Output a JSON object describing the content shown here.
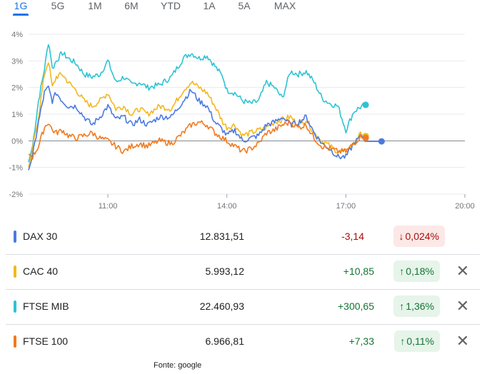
{
  "tabs": [
    "1G",
    "5G",
    "1M",
    "6M",
    "YTD",
    "1A",
    "5A",
    "MAX"
  ],
  "active_tab": "1G",
  "colors": {
    "DAX 30": "#4a7ae0",
    "CAC 40": "#f3b81e",
    "FTSE MIB": "#2ec3d3",
    "FTSE 100": "#f07a1f",
    "up": "#137333",
    "down": "#a50e0e"
  },
  "chart_data": {
    "type": "line",
    "x_unit": "time of day (hours)",
    "xlim": [
      9,
      20
    ],
    "ylim": [
      -2,
      4
    ],
    "xticks": [
      "11:00",
      "14:00",
      "17:00",
      "20:00"
    ],
    "yticks": [
      "4%",
      "3%",
      "2%",
      "1%",
      "0%",
      "-1%",
      "-2%"
    ],
    "baseline": 0,
    "grid": "horizontal",
    "series": [
      {
        "name": "FTSE MIB",
        "x": [
          9.0,
          9.1,
          9.25,
          9.4,
          9.5,
          9.55,
          9.6,
          9.7,
          9.85,
          10.0,
          10.2,
          10.4,
          10.6,
          10.8,
          11.0,
          11.2,
          11.4,
          11.6,
          11.8,
          12.0,
          12.3,
          12.6,
          12.9,
          13.0,
          13.1,
          13.3,
          13.5,
          13.7,
          13.9,
          14.0,
          14.2,
          14.4,
          14.6,
          14.8,
          15.0,
          15.2,
          15.4,
          15.6,
          15.8,
          16.0,
          16.2,
          16.4,
          16.6,
          16.8,
          17.0,
          17.2,
          17.4,
          17.5
        ],
        "values": [
          -0.8,
          -0.2,
          1.5,
          2.7,
          3.7,
          3.3,
          2.7,
          3.0,
          3.3,
          3.1,
          2.9,
          2.5,
          2.4,
          2.5,
          3.0,
          2.2,
          2.4,
          2.1,
          2.2,
          2.0,
          2.1,
          2.4,
          3.1,
          3.2,
          3.3,
          3.1,
          3.2,
          2.8,
          2.4,
          1.9,
          1.8,
          1.5,
          1.4,
          1.5,
          2.2,
          2.0,
          1.6,
          2.6,
          2.5,
          2.6,
          2.2,
          1.6,
          1.4,
          1.3,
          0.4,
          1.1,
          1.3,
          1.35
        ]
      },
      {
        "name": "CAC 40",
        "x": [
          9.0,
          9.1,
          9.25,
          9.4,
          9.5,
          9.6,
          9.7,
          9.85,
          10.0,
          10.2,
          10.4,
          10.6,
          10.8,
          11.0,
          11.2,
          11.4,
          11.6,
          11.8,
          12.0,
          12.3,
          12.6,
          12.9,
          13.1,
          13.3,
          13.5,
          13.7,
          13.9,
          14.0,
          14.2,
          14.4,
          14.6,
          14.8,
          15.0,
          15.2,
          15.4,
          15.6,
          15.8,
          16.0,
          16.2,
          16.4,
          16.6,
          16.8,
          17.0,
          17.2,
          17.4,
          17.5
        ],
        "values": [
          -1.0,
          -0.3,
          0.9,
          2.5,
          3.0,
          2.0,
          2.4,
          2.5,
          2.2,
          1.9,
          1.5,
          1.3,
          1.5,
          1.8,
          1.2,
          1.3,
          1.0,
          1.2,
          1.0,
          1.3,
          1.2,
          1.9,
          2.2,
          2.0,
          1.8,
          1.3,
          0.7,
          0.5,
          0.6,
          0.2,
          0.3,
          0.4,
          0.5,
          0.7,
          0.8,
          0.9,
          0.6,
          0.8,
          0.3,
          0.0,
          -0.2,
          -0.4,
          -0.4,
          -0.1,
          0.3,
          0.18
        ]
      },
      {
        "name": "DAX 30",
        "x": [
          9.0,
          9.1,
          9.25,
          9.4,
          9.5,
          9.6,
          9.7,
          9.85,
          10.0,
          10.2,
          10.4,
          10.6,
          10.8,
          11.0,
          11.2,
          11.4,
          11.6,
          11.8,
          12.0,
          12.3,
          12.6,
          12.9,
          13.1,
          13.3,
          13.5,
          13.7,
          13.9,
          14.0,
          14.2,
          14.4,
          14.6,
          14.8,
          15.0,
          15.2,
          15.4,
          15.6,
          15.8,
          16.0,
          16.2,
          16.4,
          16.6,
          16.8,
          17.0,
          17.2,
          17.4,
          17.5,
          17.6,
          17.8,
          17.9
        ],
        "values": [
          -1.1,
          -0.6,
          0.7,
          1.8,
          2.0,
          1.5,
          1.8,
          1.5,
          1.3,
          1.3,
          0.9,
          0.6,
          0.9,
          1.3,
          0.8,
          0.9,
          0.6,
          0.8,
          0.6,
          0.9,
          0.9,
          1.5,
          1.9,
          1.5,
          1.3,
          0.7,
          0.4,
          0.2,
          0.4,
          0.0,
          0.1,
          0.2,
          0.6,
          0.7,
          0.9,
          0.6,
          0.7,
          0.9,
          0.3,
          -0.1,
          -0.3,
          -0.6,
          -0.6,
          -0.1,
          0.2,
          -0.02,
          -0.02,
          -0.02,
          -0.02
        ]
      },
      {
        "name": "FTSE 100",
        "x": [
          9.0,
          9.1,
          9.25,
          9.4,
          9.5,
          9.6,
          9.7,
          9.85,
          10.0,
          10.2,
          10.4,
          10.6,
          10.8,
          11.0,
          11.2,
          11.4,
          11.6,
          11.8,
          12.0,
          12.3,
          12.6,
          12.9,
          13.1,
          13.3,
          13.5,
          13.7,
          13.9,
          14.0,
          14.2,
          14.4,
          14.6,
          14.8,
          15.0,
          15.2,
          15.4,
          15.6,
          15.8,
          16.0,
          16.2,
          16.4,
          16.6,
          16.8,
          17.0,
          17.2,
          17.4,
          17.5
        ],
        "values": [
          -0.5,
          -0.6,
          -0.2,
          0.5,
          0.7,
          0.4,
          0.3,
          0.4,
          0.2,
          0.1,
          0.2,
          0.3,
          0.1,
          0.0,
          -0.2,
          -0.4,
          -0.2,
          -0.1,
          -0.2,
          0.0,
          -0.1,
          0.3,
          0.6,
          0.7,
          0.6,
          0.3,
          0.1,
          0.0,
          -0.2,
          -0.4,
          -0.3,
          -0.1,
          0.3,
          0.4,
          0.6,
          0.7,
          0.5,
          0.6,
          0.1,
          -0.2,
          -0.3,
          -0.4,
          -0.4,
          -0.1,
          0.2,
          0.11
        ]
      }
    ]
  },
  "rows": [
    {
      "name": "DAX 30",
      "value": "12.831,51",
      "change": "-3,14",
      "pct": "0,024%",
      "direction": "down",
      "removable": false
    },
    {
      "name": "CAC 40",
      "value": "5.993,12",
      "change": "+10,85",
      "pct": "0,18%",
      "direction": "up",
      "removable": true
    },
    {
      "name": "FTSE MIB",
      "value": "22.460,93",
      "change": "+300,65",
      "pct": "1,36%",
      "direction": "up",
      "removable": true
    },
    {
      "name": "FTSE 100",
      "value": "6.966,81",
      "change": "+7,33",
      "pct": "0,11%",
      "direction": "up",
      "removable": true
    }
  ],
  "arrows": {
    "up": "↑",
    "down": "↓"
  },
  "close_glyph": "✕",
  "source": "Fonte: google"
}
